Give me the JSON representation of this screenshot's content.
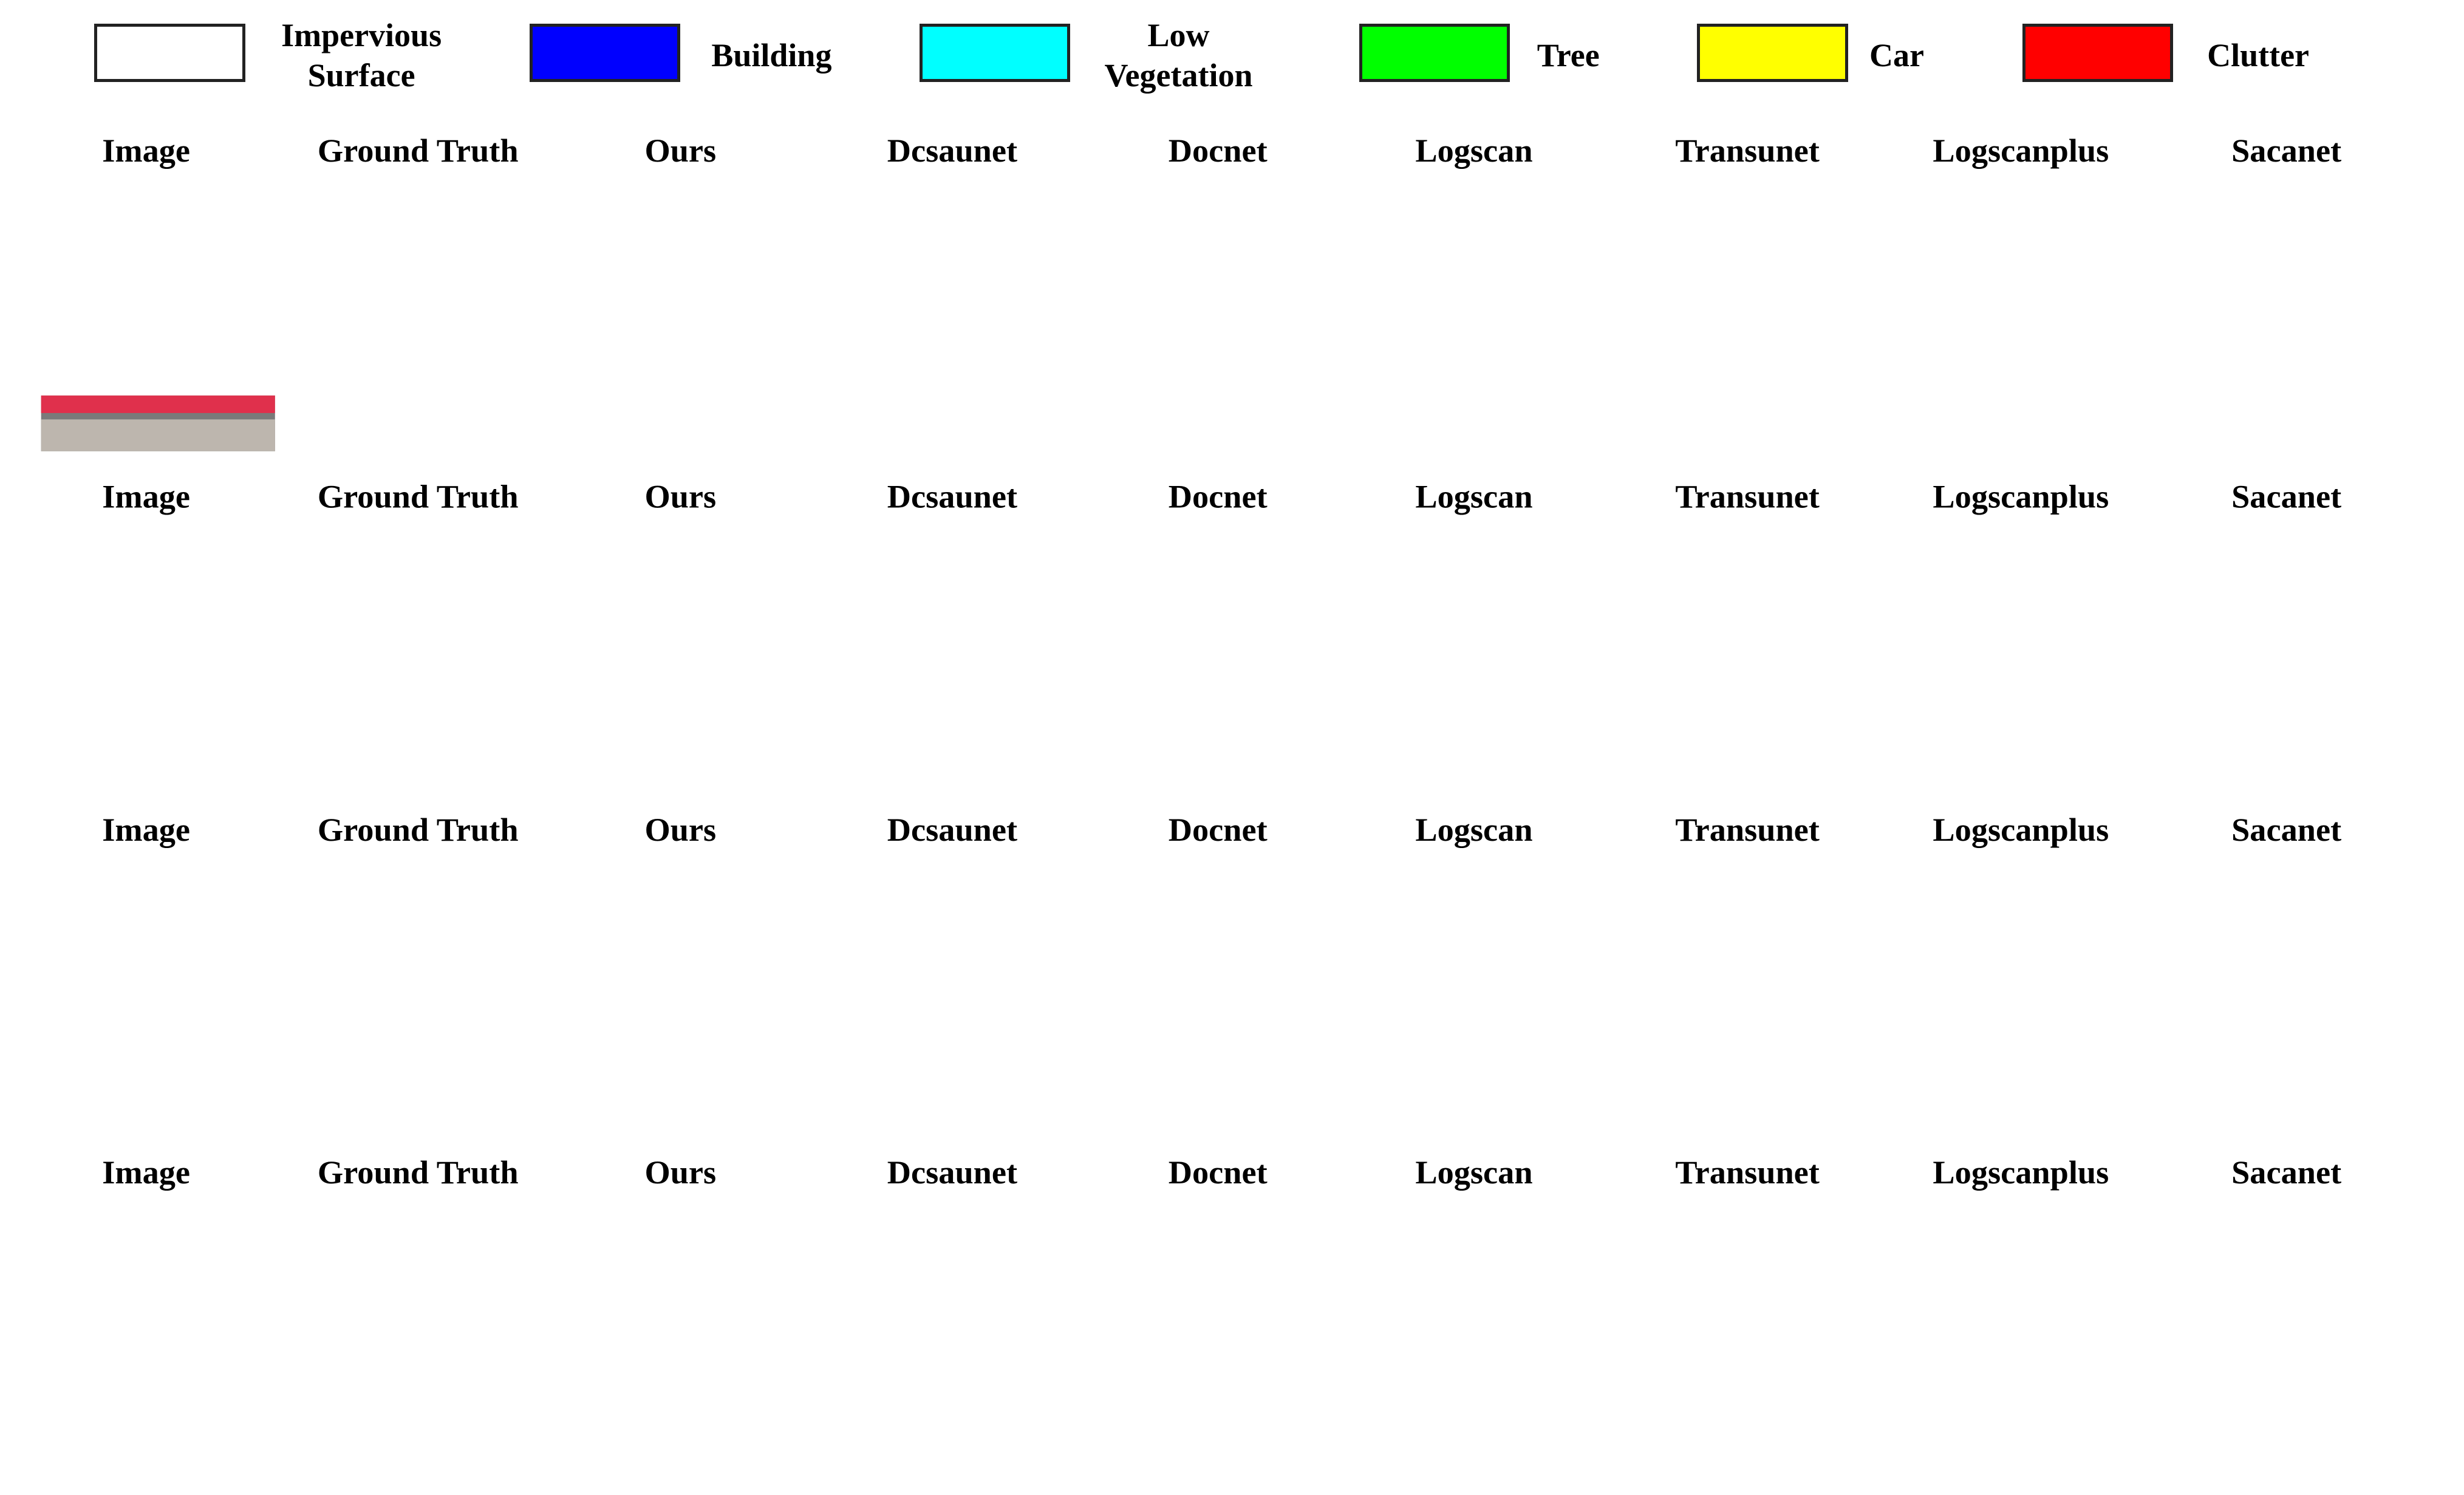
{
  "legend": [
    {
      "label": "Impervious Surface",
      "color": "#ffffff"
    },
    {
      "label": "Building",
      "color": "#0000ff"
    },
    {
      "label": "Low Vegetation",
      "color": "#00ffff"
    },
    {
      "label": "Tree",
      "color": "#00ff00"
    },
    {
      "label": "Car",
      "color": "#ffff00"
    },
    {
      "label": "Clutter",
      "color": "#ff0000"
    }
  ],
  "rows": [
    {
      "headers": [
        "Image",
        "Ground Truth",
        "Ours",
        "Dcsaunet",
        "Docnet",
        "Logscan",
        "Transunet",
        "Logscanplus",
        "Sacanet"
      ]
    },
    {
      "headers": [
        "Image",
        "Ground Truth",
        "Ours",
        "Dcsaunet",
        "Docnet",
        "Logscan",
        "Transunet",
        "Logscanplus",
        "Sacanet"
      ]
    },
    {
      "headers": [
        "Image",
        "Ground Truth",
        "Ours",
        "Dcsaunet",
        "Docnet",
        "Logscan",
        "Transunet",
        "Logscanplus",
        "Sacanet"
      ]
    },
    {
      "headers": [
        "Image",
        "Ground Truth",
        "Ours",
        "Dcsaunet",
        "Docnet",
        "Logscan",
        "Transunet",
        "Logscanplus",
        "Sacanet"
      ]
    }
  ]
}
